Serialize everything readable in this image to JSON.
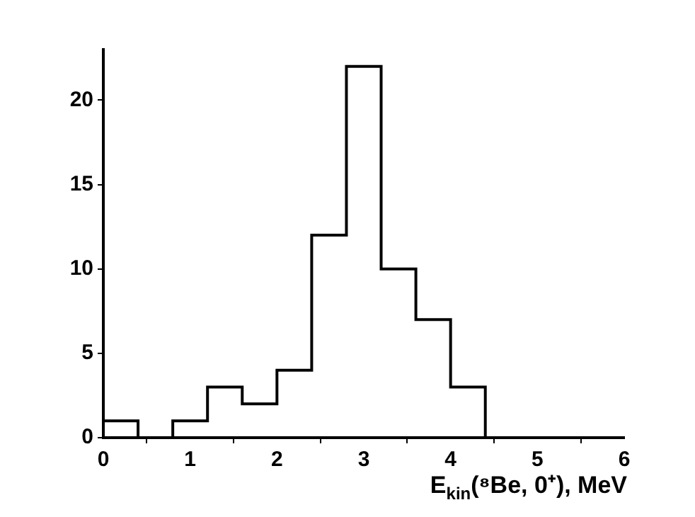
{
  "chart_data": {
    "type": "histogram",
    "xlabel": "E$_{kin}$(⁸Be, 0⁺), MeV",
    "bins": [
      0,
      0.4,
      0.8,
      1.2,
      1.6,
      2.0,
      2.4,
      2.8,
      3.2,
      3.6,
      4.0,
      4.4,
      4.8,
      5.2,
      5.6,
      6.0
    ],
    "values": [
      1,
      0,
      1,
      3,
      2,
      4,
      12,
      22,
      10,
      7,
      3,
      0,
      0,
      0,
      0
    ],
    "color": "#000000",
    "xlim": [
      0,
      6
    ],
    "xticks": [
      0,
      1,
      2,
      3,
      4,
      5,
      6
    ],
    "ylim": [
      0,
      23
    ],
    "yticks": [
      0,
      5,
      10,
      15,
      20
    ],
    "grid": false,
    "legend": false
  }
}
